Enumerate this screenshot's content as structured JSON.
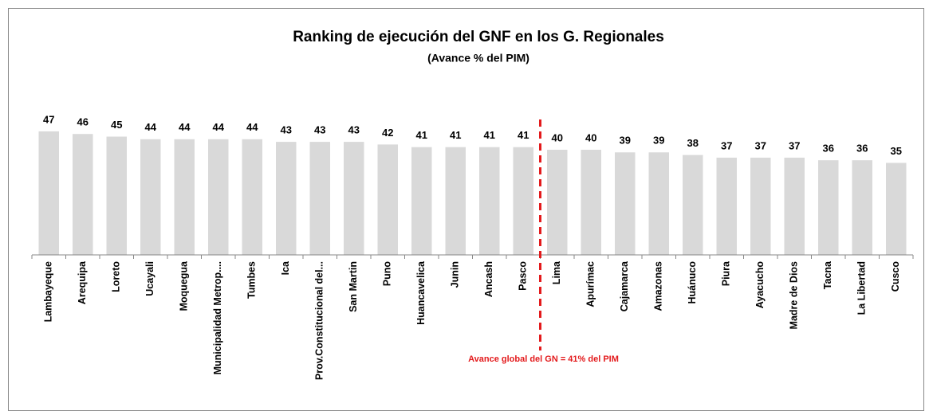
{
  "chart_data": {
    "type": "bar",
    "title": "Ranking de ejecución del GNF en los G. Regionales",
    "subtitle": "(Avance % del PIM)",
    "annotation": "Avance global del GN = 41% del PIM",
    "categories": [
      "Lambayeque",
      "Arequipa",
      "Loreto",
      "Ucayali",
      "Moquegua",
      "Municipalidad Metrop....",
      "Tumbes",
      "Ica",
      "Prov.Constitucional del...",
      "San Martin",
      "Puno",
      "Huancavelica",
      "Junin",
      "Ancash",
      "Pasco",
      "Lima",
      "Apurímac",
      "Cajamarca",
      "Amazonas",
      "Huánuco",
      "Piura",
      "Ayacucho",
      "Madre de Dios",
      "Tacna",
      "La Libertad",
      "Cusco"
    ],
    "values": [
      47,
      46,
      45,
      44,
      44,
      44,
      44,
      43,
      43,
      43,
      42,
      41,
      41,
      41,
      41,
      40,
      40,
      39,
      39,
      38,
      37,
      37,
      37,
      36,
      36,
      35
    ],
    "color": "#d9d9d9",
    "reference_color": "#e31a1c",
    "ylim": [
      0,
      50
    ]
  }
}
